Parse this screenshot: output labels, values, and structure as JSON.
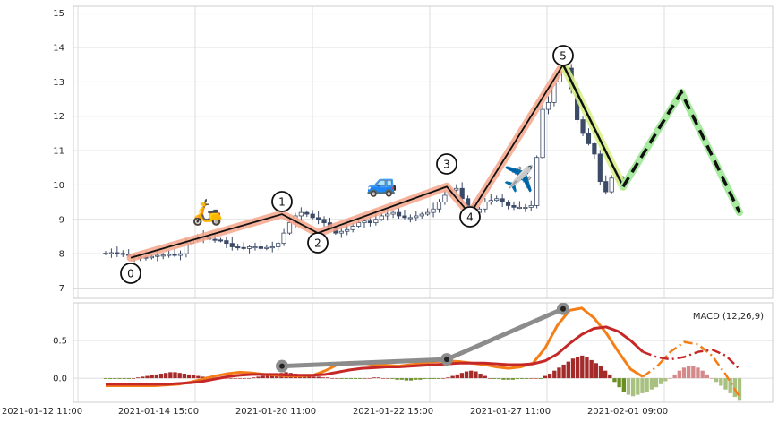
{
  "chart_data": [
    {
      "type": "candlestick",
      "ylim": [
        6.7,
        15.2
      ],
      "yticks": [
        "7",
        "8",
        "9",
        "10",
        "11",
        "12",
        "13",
        "14",
        "15"
      ],
      "grid": true,
      "ohlc_close": [
        8.02,
        8.03,
        8.01,
        7.98,
        7.95,
        7.9,
        7.9,
        7.88,
        7.92,
        7.95,
        7.96,
        7.98,
        7.95,
        8.0,
        8.3,
        8.4,
        8.45,
        8.5,
        8.42,
        8.4,
        8.38,
        8.3,
        8.2,
        8.18,
        8.15,
        8.2,
        8.2,
        8.15,
        8.18,
        8.2,
        8.3,
        8.6,
        8.9,
        9.1,
        9.2,
        9.15,
        9.05,
        9.0,
        8.9,
        8.75,
        8.6,
        8.65,
        8.7,
        8.8,
        8.9,
        8.95,
        8.9,
        9.0,
        9.1,
        9.15,
        9.2,
        9.1,
        9.05,
        9.05,
        9.1,
        9.15,
        9.2,
        9.3,
        9.5,
        9.7,
        9.85,
        9.9,
        9.6,
        9.4,
        9.2,
        9.3,
        9.5,
        9.55,
        9.6,
        9.5,
        9.4,
        9.35,
        9.35,
        9.35,
        9.4,
        10.8,
        12.2,
        12.4,
        13.0,
        13.3,
        13.4,
        12.8,
        11.9,
        11.5,
        11.2,
        10.9,
        10.1,
        9.8,
        10.2,
        10.2,
        10.1
      ],
      "wave_labels": [
        "0",
        "1",
        "2",
        "3",
        "4",
        "5"
      ],
      "wave_values": [
        7.88,
        9.15,
        8.6,
        9.95,
        9.15,
        13.5
      ],
      "projection_values": [
        9.95,
        12.7,
        9.2
      ]
    },
    {
      "type": "macd",
      "legend": "MACD (12,26,9)",
      "ylim": [
        -0.32,
        1.0
      ],
      "yticks": [
        "0.0",
        "0.5"
      ],
      "xticks": [
        "2021-01-12 11:00",
        "2021-01-14 15:00",
        "2021-01-20 11:00",
        "2021-01-22 15:00",
        "2021-01-27 11:00",
        "2021-02-01 09:00"
      ],
      "macd": [
        -0.1,
        -0.1,
        -0.1,
        -0.1,
        -0.1,
        -0.09,
        -0.08,
        -0.05,
        -0.01,
        0.03,
        0.06,
        0.08,
        0.07,
        0.05,
        0.04,
        0.03,
        0.03,
        0.04,
        0.1,
        0.18,
        0.21,
        0.2,
        0.18,
        0.17,
        0.16,
        0.18,
        0.2,
        0.22,
        0.23,
        0.22,
        0.2,
        0.18,
        0.15,
        0.13,
        0.15,
        0.2,
        0.4,
        0.7,
        0.9,
        0.93,
        0.8,
        0.6,
        0.35,
        0.12,
        0.02
      ],
      "signal": [
        -0.08,
        -0.08,
        -0.08,
        -0.08,
        -0.08,
        -0.08,
        -0.07,
        -0.06,
        -0.04,
        -0.01,
        0.02,
        0.04,
        0.05,
        0.05,
        0.05,
        0.04,
        0.04,
        0.04,
        0.05,
        0.08,
        0.11,
        0.13,
        0.14,
        0.15,
        0.15,
        0.16,
        0.17,
        0.18,
        0.19,
        0.2,
        0.2,
        0.2,
        0.19,
        0.18,
        0.18,
        0.19,
        0.23,
        0.32,
        0.46,
        0.58,
        0.66,
        0.68,
        0.62,
        0.5,
        0.35
      ],
      "macd_projection": [
        0.02,
        0.15,
        0.35,
        0.48,
        0.45,
        0.3,
        0.05,
        -0.25
      ],
      "signal_projection": [
        0.35,
        0.28,
        0.25,
        0.28,
        0.35,
        0.38,
        0.3,
        0.12
      ],
      "peak_values": [
        0.16,
        0.25,
        0.92
      ],
      "histogram": [
        -0.01,
        -0.01,
        -0.01,
        -0.01,
        -0.01,
        -0.01,
        0.0,
        0.01,
        0.02,
        0.03,
        0.04,
        0.05,
        0.06,
        0.07,
        0.08,
        0.08,
        0.07,
        0.06,
        0.05,
        0.04,
        0.03,
        0.02,
        0.02,
        0.01,
        0.01,
        0.0,
        0.0,
        0.0,
        0.0,
        0.0,
        0.0,
        0.0,
        0.01,
        0.02,
        0.03,
        0.04,
        0.05,
        0.06,
        0.07,
        0.08,
        0.07,
        0.06,
        0.05,
        0.04,
        0.03,
        0.02,
        0.02,
        0.01,
        0.01,
        0.0,
        0.0,
        -0.01,
        -0.01,
        -0.01,
        -0.01,
        -0.01,
        0.0,
        0.0,
        0.01,
        0.01,
        0.0,
        0.0,
        -0.01,
        -0.02,
        -0.02,
        -0.03,
        -0.03,
        -0.02,
        -0.02,
        -0.01,
        -0.01,
        -0.01,
        -0.01,
        0.0,
        0.01,
        0.03,
        0.05,
        0.07,
        0.09,
        0.1,
        0.09,
        0.06,
        0.03,
        0.0,
        -0.01,
        -0.01,
        -0.02,
        -0.02,
        -0.02,
        -0.01,
        -0.01,
        -0.01,
        0.0,
        0.0,
        -0.01,
        0.03,
        0.06,
        0.1,
        0.14,
        0.18,
        0.22,
        0.26,
        0.28,
        0.3,
        0.28,
        0.24,
        0.2,
        0.16,
        0.1,
        0.05,
        -0.05,
        -0.12,
        -0.18,
        -0.22,
        -0.24,
        -0.22,
        -0.2,
        -0.18,
        -0.15,
        -0.12,
        -0.08,
        -0.04,
        0.0,
        0.05,
        0.1,
        0.14,
        0.16,
        0.16,
        0.14,
        0.1,
        0.05,
        0.0,
        -0.05,
        -0.1,
        -0.15,
        -0.2,
        -0.25,
        -0.3
      ]
    }
  ]
}
